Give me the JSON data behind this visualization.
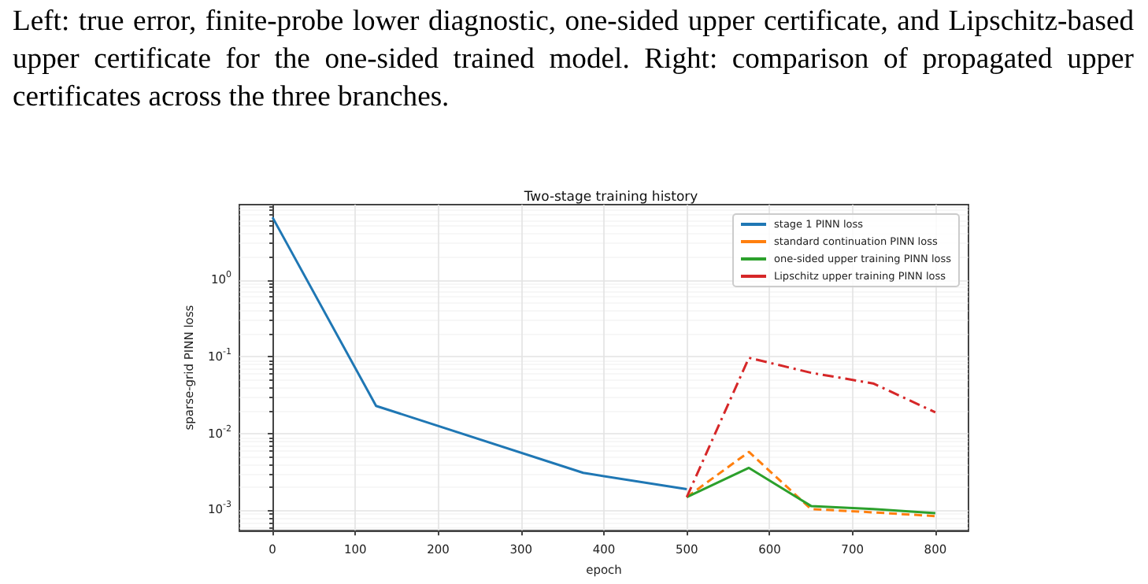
{
  "chart_data": {
    "type": "line",
    "title": "Two-stage training history",
    "xlabel": "epoch",
    "ylabel": "sparse-grid PINN loss",
    "annotations": [
      "Left: true error, finite-probe lower diagnostic, one-sided upper certificate, and Lipschitz-based upper certificate for the one-sided trained model. Right: comparison of propagated upper certificates across the three branches."
    ],
    "series": [
      {
        "name": "stage 1 PINN loss",
        "color": "#1f77b4",
        "line_style": "solid",
        "x": [
          0,
          125,
          375,
          500
        ],
        "values": [
          6.5,
          0.023,
          0.0031,
          0.0019
        ]
      },
      {
        "name": "standard continuation PINN loss",
        "color": "#ff7f0e",
        "line_style": "dashed",
        "x": [
          500,
          575,
          650,
          725,
          800
        ],
        "values": [
          0.0015,
          0.0058,
          0.00105,
          0.00095,
          0.00085
        ]
      },
      {
        "name": "one-sided upper training PINN loss",
        "color": "#2ca02c",
        "line_style": "solid",
        "x": [
          500,
          575,
          650,
          725,
          800
        ],
        "values": [
          0.0015,
          0.0036,
          0.00115,
          0.00105,
          0.00093
        ]
      },
      {
        "name": "Lipschitz upper training PINN loss",
        "color": "#d62728",
        "line_style": "dashdot",
        "x": [
          500,
          575,
          650,
          725,
          800
        ],
        "values": [
          0.0015,
          0.097,
          0.062,
          0.045,
          0.019
        ]
      }
    ],
    "log": "y",
    "xlim": [
      -40,
      840
    ],
    "xticks": [
      0,
      100,
      200,
      300,
      400,
      500,
      600,
      700,
      800
    ],
    "ylim": [
      0.00055,
      9.5
    ],
    "yticks": [
      {
        "value": 0.001,
        "label": "10$^{-3}$"
      },
      {
        "value": 0.01,
        "label": "10$^{-2}$"
      },
      {
        "value": 0.1,
        "label": "10$^{-1}$"
      },
      {
        "value": 1,
        "label": "10$^{0}$"
      }
    ],
    "grid": true,
    "legend": "top right",
    "marker": "none"
  }
}
